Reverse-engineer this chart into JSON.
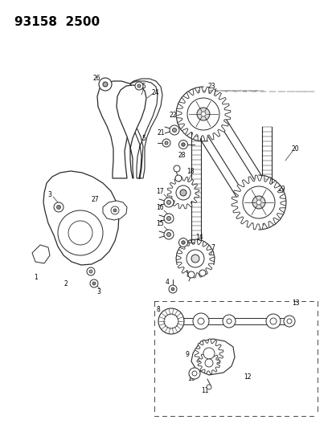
{
  "title": "93158  2500",
  "bg_color": "#ffffff",
  "line_color": "#2a2a2a",
  "fig_width": 4.14,
  "fig_height": 5.33,
  "dpi": 100,
  "label_fs": 6.0
}
